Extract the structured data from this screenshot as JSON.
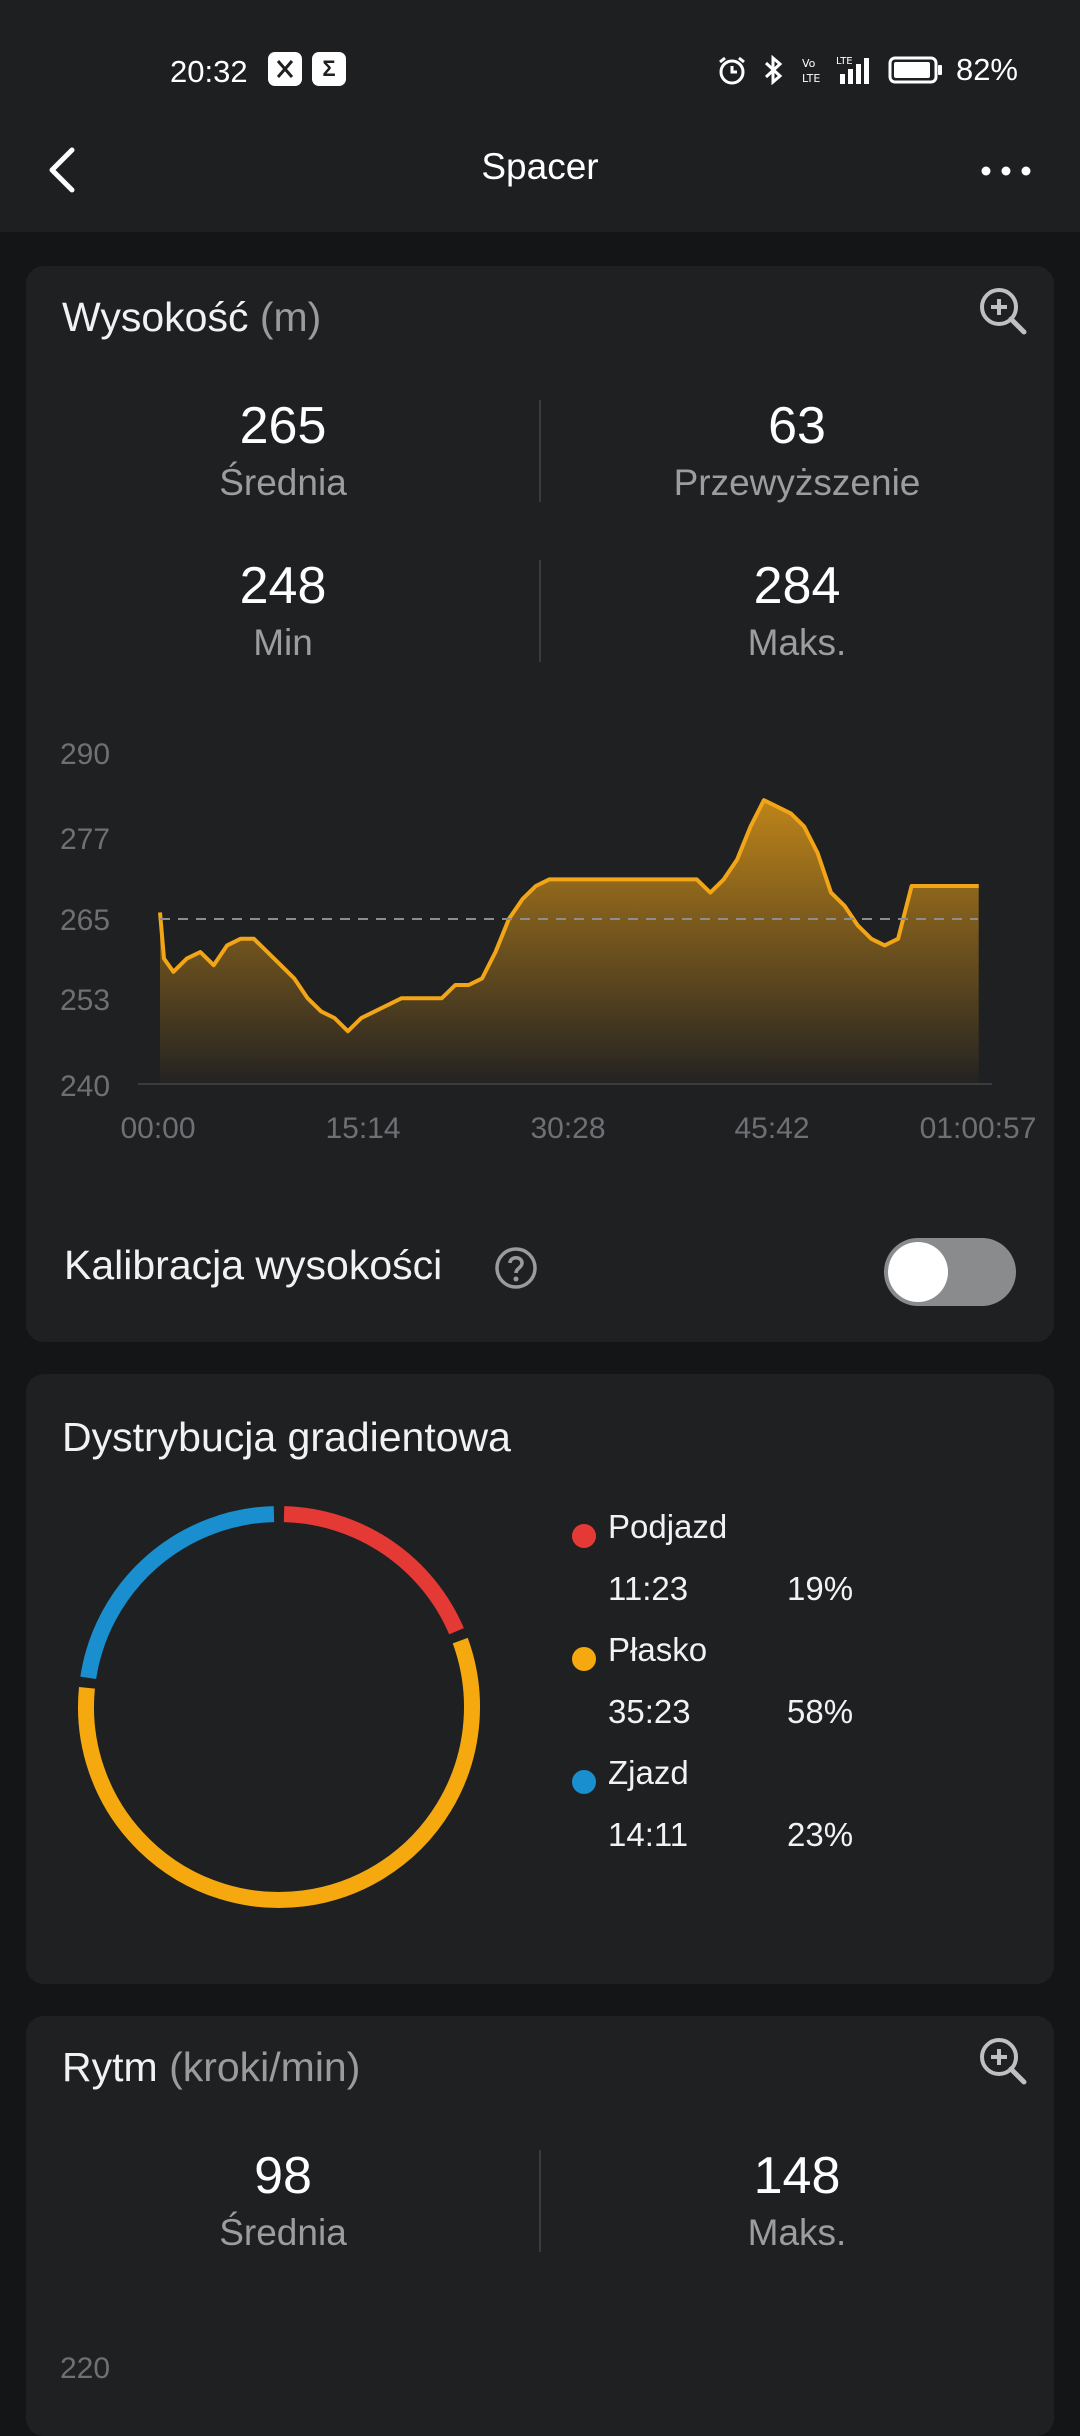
{
  "status": {
    "time": "20:32",
    "app_icons": [
      "app-icon-1",
      "sigma-app-icon"
    ],
    "battery": "82%"
  },
  "nav": {
    "title": "Spacer"
  },
  "altitude": {
    "title": "Wysokość",
    "unit": "(m)",
    "stats": [
      {
        "value": "265",
        "label": "Średnia"
      },
      {
        "value": "63",
        "label": "Przewyższenie"
      },
      {
        "value": "248",
        "label": "Min"
      },
      {
        "value": "284",
        "label": "Maks."
      }
    ],
    "chart_data": {
      "type": "area",
      "title": "",
      "xlabel": "",
      "ylabel": "",
      "y_ticks": [
        "290",
        "277",
        "265",
        "253",
        "240"
      ],
      "x_ticks": [
        "00:00",
        "15:14",
        "30:28",
        "45:42",
        "01:00:57"
      ],
      "ylim": [
        240,
        290
      ],
      "xlim_minutes": [
        0,
        60.95
      ],
      "average_line": 265,
      "grid": false,
      "color": "#f2a516",
      "series": [
        {
          "x_minutes": [
            0,
            0.3,
            1,
            2,
            3,
            4,
            5,
            6,
            7,
            8,
            9,
            10,
            11,
            12,
            13,
            14,
            15,
            16,
            17,
            18,
            19,
            20,
            21,
            22,
            23,
            24,
            25,
            26,
            27,
            28,
            29,
            30,
            31,
            32,
            34,
            36,
            38,
            40,
            41,
            42,
            43,
            44,
            45,
            46,
            47,
            48,
            49,
            50,
            51,
            52,
            53,
            54,
            55,
            56,
            57,
            58,
            59,
            60,
            61
          ],
          "y": [
            266,
            259,
            257,
            259,
            260,
            258,
            261,
            262,
            262,
            260,
            258,
            256,
            253,
            251,
            250,
            248,
            250,
            251,
            252,
            253,
            253,
            253,
            253,
            255,
            255,
            256,
            260,
            265,
            268,
            270,
            271,
            271,
            271,
            271,
            271,
            271,
            271,
            271,
            269,
            271,
            274,
            279,
            283,
            282,
            281,
            279,
            275,
            269,
            267,
            264,
            262,
            261,
            262,
            270,
            270,
            270,
            270,
            270,
            270
          ]
        }
      ]
    },
    "calibration_label": "Kalibracja wysokości",
    "calibration_on": false
  },
  "gradient": {
    "title": "Dystrybucja gradientowa",
    "chart_data": {
      "type": "pie",
      "title": "",
      "slices": [
        {
          "name": "Podjazd",
          "time": "11:23",
          "pct_label": "19%",
          "value": 19,
          "color": "#e53935"
        },
        {
          "name": "Płasko",
          "time": "35:23",
          "pct_label": "58%",
          "value": 58,
          "color": "#f5a90f"
        },
        {
          "name": "Zjazd",
          "time": "14:11",
          "pct_label": "23%",
          "value": 23,
          "color": "#1a8fd0"
        }
      ]
    }
  },
  "cadence": {
    "title": "Rytm",
    "unit": "(kroki/min)",
    "stats": [
      {
        "value": "98",
        "label": "Średnia"
      },
      {
        "value": "148",
        "label": "Maks."
      }
    ],
    "y_tick_top": "220"
  }
}
